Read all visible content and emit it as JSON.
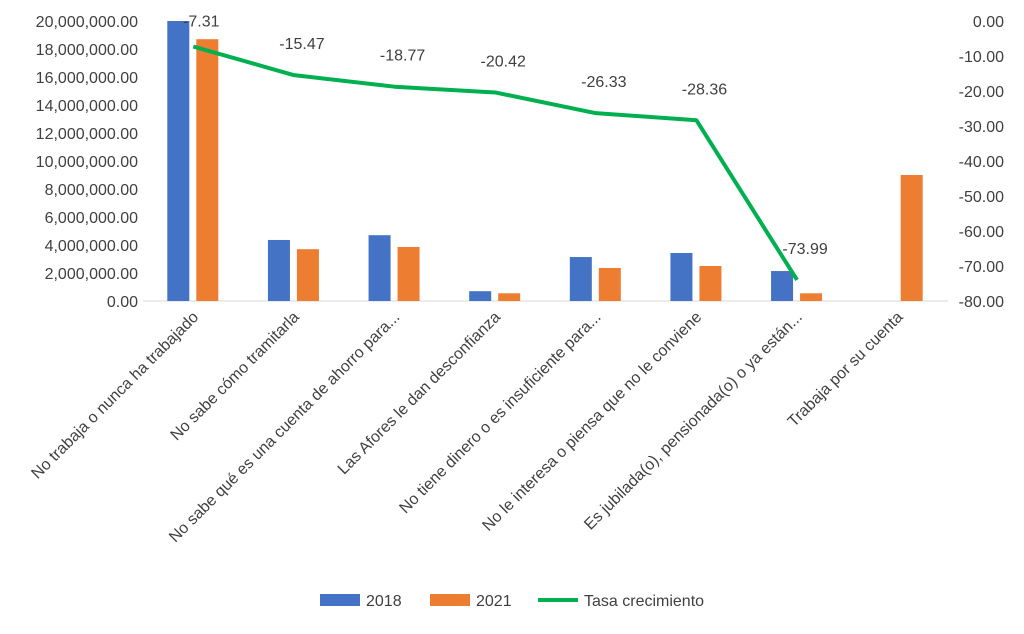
{
  "chart_data": {
    "type": "bar",
    "title": "",
    "categories": [
      "No trabaja o nunca ha trabajado",
      "No sabe cómo tramitarla",
      "No sabe qué es una cuenta de ahorro para...",
      "Las Afores le dan desconfianza",
      "No tiene dinero o es insuficiente para...",
      "No le interesa o piensa que no le conviene",
      "Es jubilada(o), pensionada(o) o ya están...",
      "Trabaja por su cuenta"
    ],
    "series": [
      {
        "name": "2018",
        "type": "bar",
        "axis": "left",
        "color": "#4472C4",
        "values": [
          20000000,
          4360000,
          4700000,
          700000,
          3140000,
          3430000,
          2140000,
          null
        ]
      },
      {
        "name": "2021",
        "type": "bar",
        "axis": "left",
        "color": "#ED7D31",
        "values": [
          18700000,
          3700000,
          3860000,
          550000,
          2360000,
          2500000,
          550000,
          9000000
        ]
      },
      {
        "name": "Tasa crecimiento",
        "type": "line",
        "axis": "right",
        "color": "#00B050",
        "values": [
          -7.31,
          -15.47,
          -18.77,
          -20.42,
          -26.33,
          -28.36,
          -73.99,
          null
        ],
        "data_labels": [
          "-7.31",
          "-15.47",
          "-18.77",
          "-20.42",
          "-26.33",
          "-28.36",
          "-73.99"
        ]
      }
    ],
    "y_left": {
      "min": 0,
      "max": 20000000,
      "step": 2000000,
      "ticks": [
        "0.00",
        "2,000,000.00",
        "4,000,000.00",
        "6,000,000.00",
        "8,000,000.00",
        "10,000,000.00",
        "12,000,000.00",
        "14,000,000.00",
        "16,000,000.00",
        "18,000,000.00",
        "20,000,000.00"
      ]
    },
    "y_right": {
      "min": -80,
      "max": 0,
      "step": 10,
      "ticks": [
        "-80.00",
        "-70.00",
        "-60.00",
        "-50.00",
        "-40.00",
        "-30.00",
        "-20.00",
        "-10.00",
        "0.00"
      ]
    },
    "grid": false,
    "legend": {
      "placement": "bottom",
      "entries": [
        "2018",
        "2021",
        "Tasa crecimiento"
      ]
    }
  }
}
